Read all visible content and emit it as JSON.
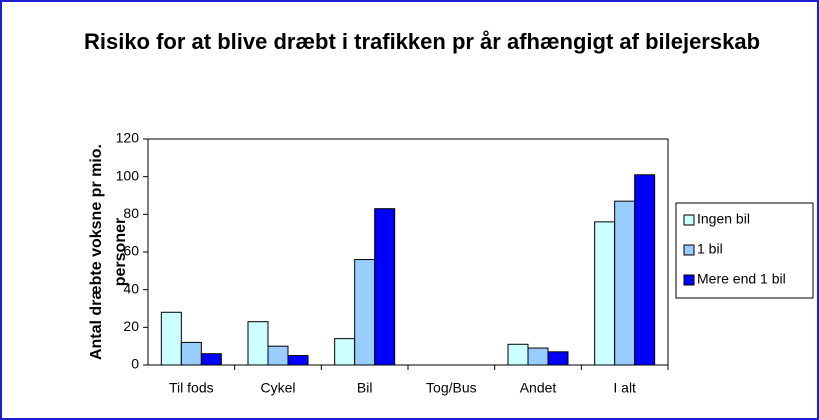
{
  "chart_data": {
    "type": "bar",
    "title": "Risiko for at blive dræbt i trafikken pr år afhængigt af bilejerskab",
    "y_label": "Antal dræbte voksne pr mio. personer",
    "categories": [
      "Til fods",
      "Cykel",
      "Bil",
      "Tog/Bus",
      "Andet",
      "I alt"
    ],
    "series": [
      {
        "name": "Ingen bil",
        "color": "#ccffff",
        "values": [
          28,
          23,
          14,
          0,
          11,
          76
        ]
      },
      {
        "name": "1 bil",
        "color": "#99ccff",
        "values": [
          12,
          10,
          56,
          0,
          9,
          87
        ]
      },
      {
        "name": "Mere end 1 bil",
        "color": "#0000ff",
        "values": [
          6,
          5,
          83,
          0,
          7,
          101
        ]
      }
    ],
    "ylim": [
      0,
      120
    ],
    "yticks": [
      0,
      20,
      40,
      60,
      80,
      100,
      120
    ],
    "grid": false,
    "legend": "right"
  }
}
